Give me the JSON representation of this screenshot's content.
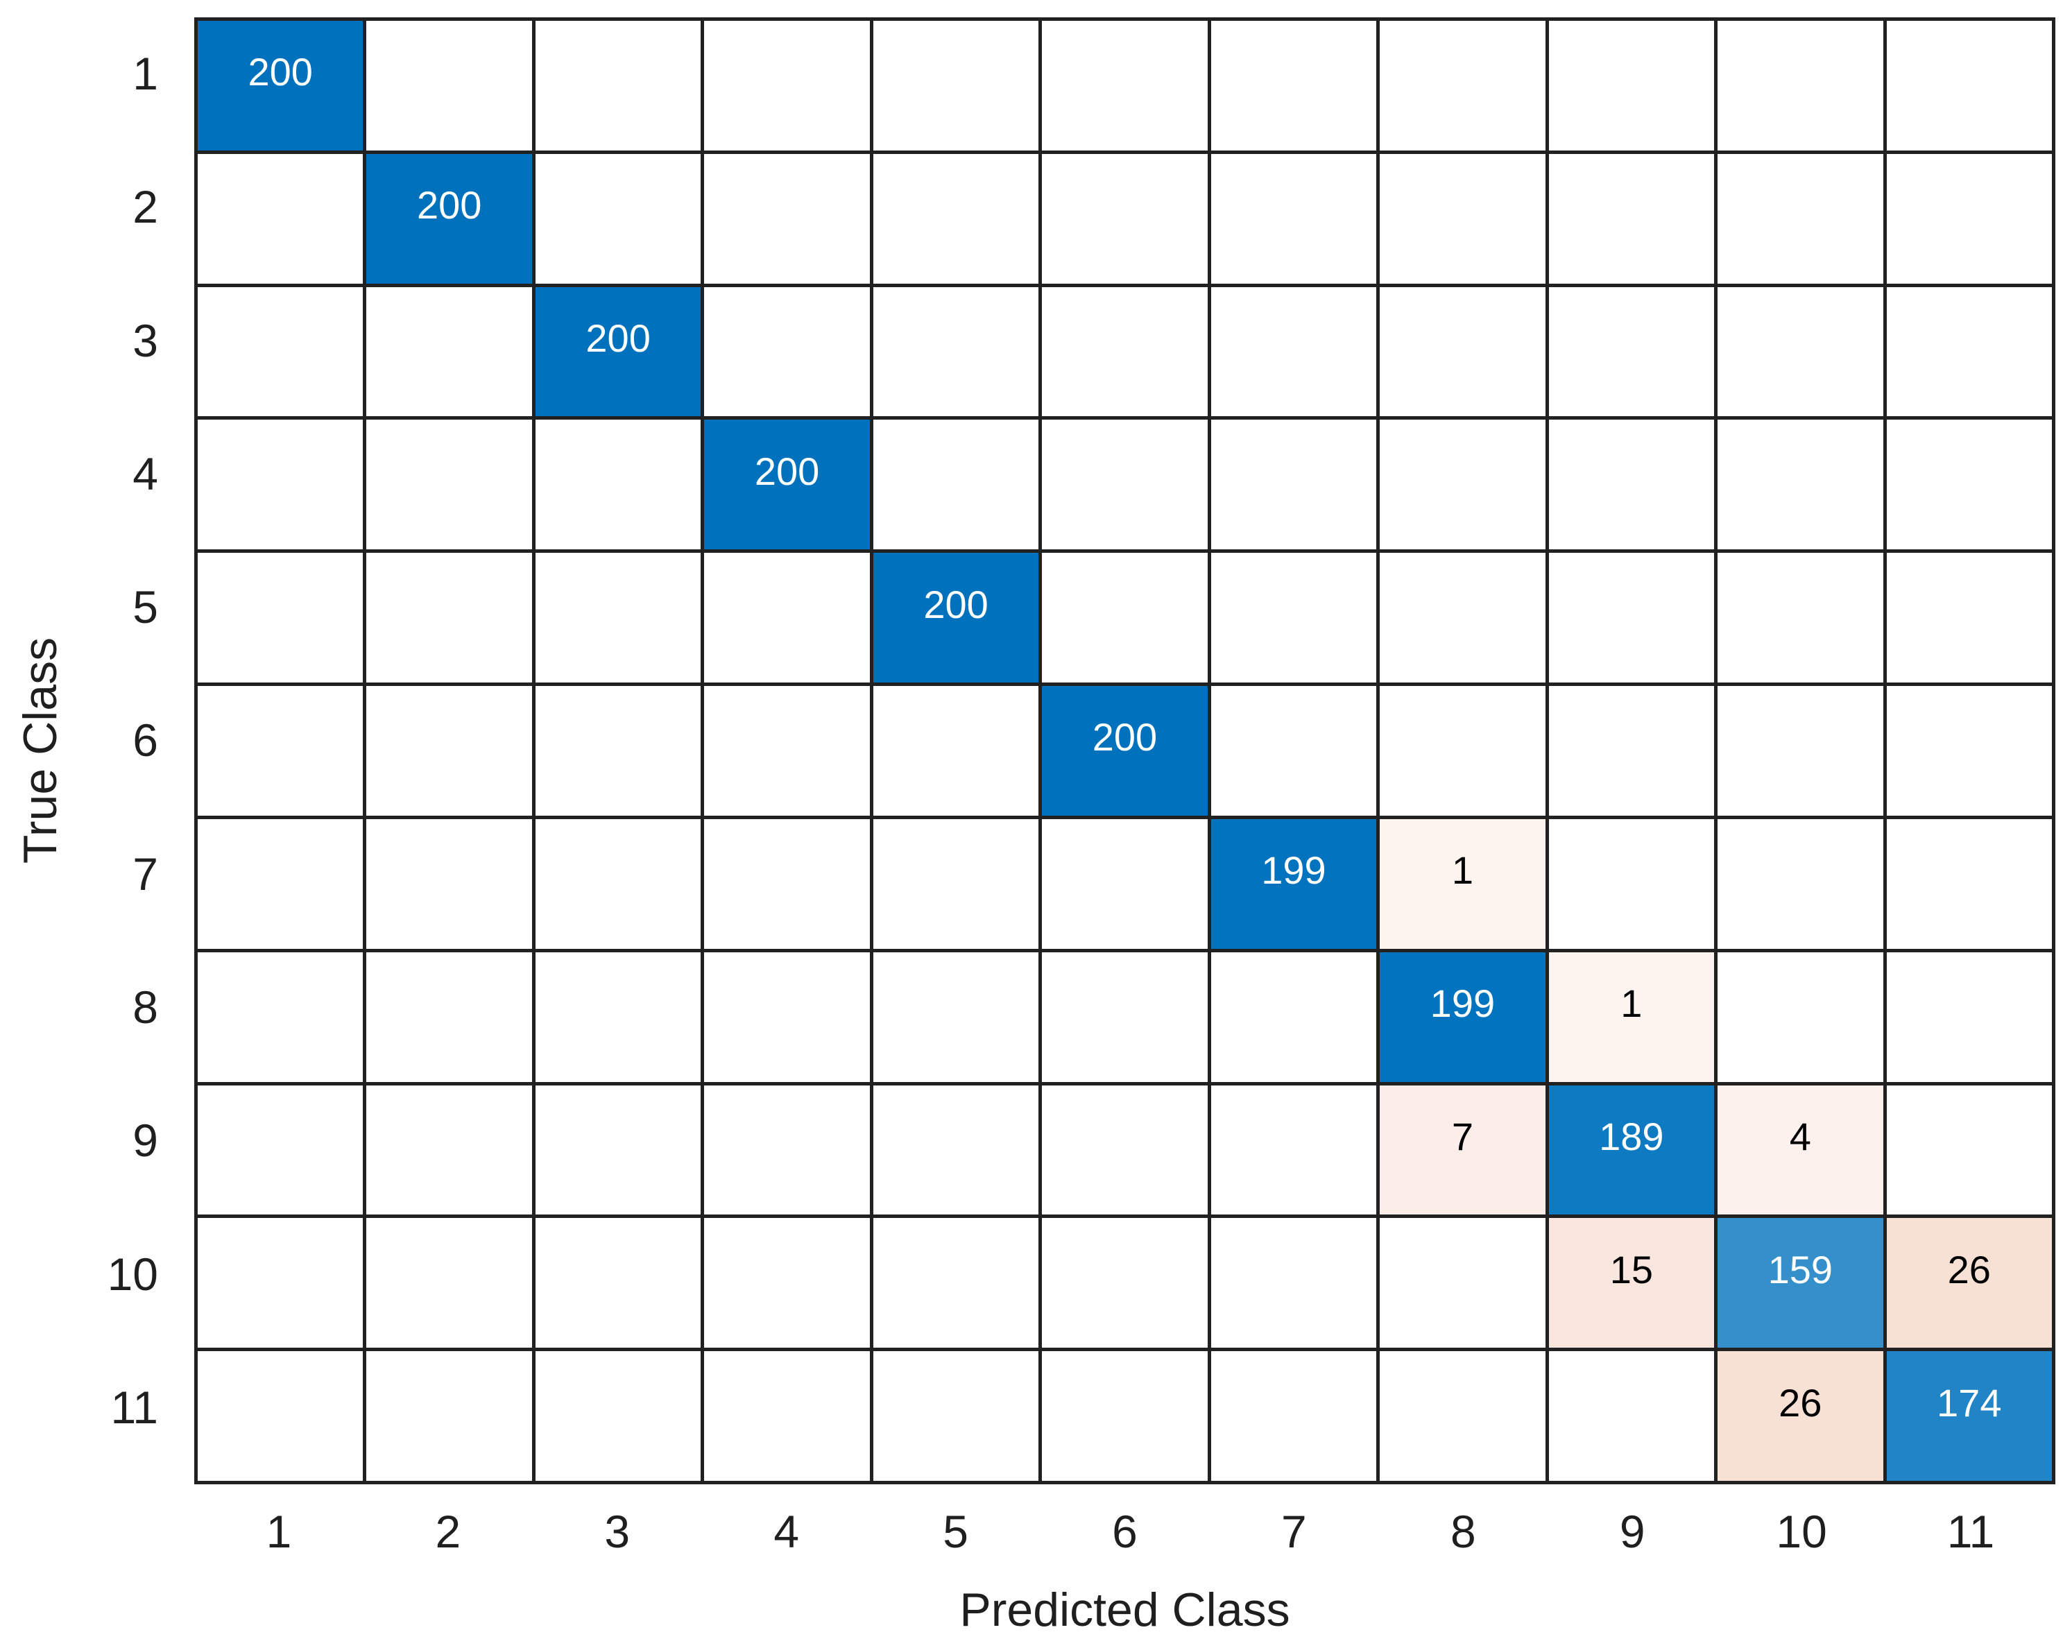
{
  "chart_data": {
    "type": "heatmap",
    "subtype": "confusion-matrix",
    "title": "",
    "xlabel": "Predicted Class",
    "ylabel": "True Class",
    "x_tick_labels": [
      "1",
      "2",
      "3",
      "4",
      "5",
      "6",
      "7",
      "8",
      "9",
      "10",
      "11"
    ],
    "y_tick_labels": [
      "1",
      "2",
      "3",
      "4",
      "5",
      "6",
      "7",
      "8",
      "9",
      "10",
      "11"
    ],
    "classes": [
      "1",
      "2",
      "3",
      "4",
      "5",
      "6",
      "7",
      "8",
      "9",
      "10",
      "11"
    ],
    "matrix": [
      [
        200,
        0,
        0,
        0,
        0,
        0,
        0,
        0,
        0,
        0,
        0
      ],
      [
        0,
        200,
        0,
        0,
        0,
        0,
        0,
        0,
        0,
        0,
        0
      ],
      [
        0,
        0,
        200,
        0,
        0,
        0,
        0,
        0,
        0,
        0,
        0
      ],
      [
        0,
        0,
        0,
        200,
        0,
        0,
        0,
        0,
        0,
        0,
        0
      ],
      [
        0,
        0,
        0,
        0,
        200,
        0,
        0,
        0,
        0,
        0,
        0
      ],
      [
        0,
        0,
        0,
        0,
        0,
        200,
        0,
        0,
        0,
        0,
        0
      ],
      [
        0,
        0,
        0,
        0,
        0,
        0,
        199,
        1,
        0,
        0,
        0
      ],
      [
        0,
        0,
        0,
        0,
        0,
        0,
        0,
        199,
        1,
        0,
        0
      ],
      [
        0,
        0,
        0,
        0,
        0,
        0,
        0,
        7,
        189,
        4,
        0
      ],
      [
        0,
        0,
        0,
        0,
        0,
        0,
        0,
        0,
        15,
        159,
        26
      ],
      [
        0,
        0,
        0,
        0,
        0,
        0,
        0,
        0,
        0,
        26,
        174
      ]
    ],
    "cells": [
      {
        "row": 1,
        "col": 1,
        "value": "200",
        "bg": "#0072BD",
        "fg": "#FFFFFF"
      },
      {
        "row": 2,
        "col": 2,
        "value": "200",
        "bg": "#0072BD",
        "fg": "#FFFFFF"
      },
      {
        "row": 3,
        "col": 3,
        "value": "200",
        "bg": "#0072BD",
        "fg": "#FFFFFF"
      },
      {
        "row": 4,
        "col": 4,
        "value": "200",
        "bg": "#0072BD",
        "fg": "#FFFFFF"
      },
      {
        "row": 5,
        "col": 5,
        "value": "200",
        "bg": "#0072BD",
        "fg": "#FFFFFF"
      },
      {
        "row": 6,
        "col": 6,
        "value": "200",
        "bg": "#0072BD",
        "fg": "#FFFFFF"
      },
      {
        "row": 7,
        "col": 7,
        "value": "199",
        "bg": "#0273BE",
        "fg": "#FFFFFF"
      },
      {
        "row": 7,
        "col": 8,
        "value": "1",
        "bg": "#FDF3EF",
        "fg": "#000000"
      },
      {
        "row": 8,
        "col": 8,
        "value": "199",
        "bg": "#0273BE",
        "fg": "#FFFFFF"
      },
      {
        "row": 8,
        "col": 9,
        "value": "1",
        "bg": "#FDF3EF",
        "fg": "#000000"
      },
      {
        "row": 9,
        "col": 8,
        "value": "7",
        "bg": "#FBEDE7",
        "fg": "#000000"
      },
      {
        "row": 9,
        "col": 9,
        "value": "189",
        "bg": "#0E7AC1",
        "fg": "#FFFFFF"
      },
      {
        "row": 9,
        "col": 10,
        "value": "4",
        "bg": "#FCF1ED",
        "fg": "#000000"
      },
      {
        "row": 10,
        "col": 9,
        "value": "15",
        "bg": "#F9E6DE",
        "fg": "#000000"
      },
      {
        "row": 10,
        "col": 10,
        "value": "159",
        "bg": "#348FCB",
        "fg": "#FFFFFF"
      },
      {
        "row": 10,
        "col": 11,
        "value": "26",
        "bg": "#F7E0D4",
        "fg": "#000000"
      },
      {
        "row": 11,
        "col": 10,
        "value": "26",
        "bg": "#F7E0D4",
        "fg": "#000000"
      },
      {
        "row": 11,
        "col": 11,
        "value": "174",
        "bg": "#2184C6",
        "fg": "#FFFFFF"
      }
    ],
    "colors": {
      "diagonal_base": "#0072BD",
      "off_diagonal_base": "#D95319",
      "empty_cell": "#FFFFFF",
      "grid_line": "#212121",
      "tick_text": "#1F1F1F"
    },
    "layout": {
      "grid_on": true,
      "legend": "none",
      "n_classes": 11
    }
  }
}
